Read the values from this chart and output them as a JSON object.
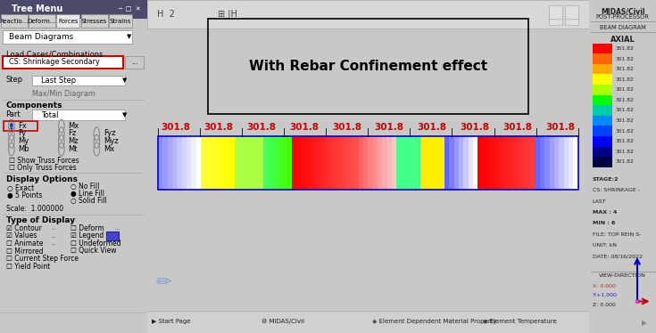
{
  "title": "With Rebar Confinement effect",
  "bg_color": "#c8c8c8",
  "main_bg": "#ffffff",
  "left_panel_bg": "#e0e0e0",
  "right_panel_bg": "#d0d0d0",
  "beam_label": "301.8",
  "legend_colors": [
    "#ff0000",
    "#ff6600",
    "#ffaa00",
    "#ffff00",
    "#aaff00",
    "#00ff00",
    "#00ccaa",
    "#0088ff",
    "#0044ff",
    "#0000ff",
    "#000088",
    "#000044"
  ],
  "legend_values": [
    "301.82",
    "301.82",
    "301.82",
    "301.82",
    "301.82",
    "301.82",
    "301.82",
    "301.82",
    "301.82",
    "301.82",
    "301.82",
    "301.82"
  ],
  "info_text": "STAGE:2\nCS: SHRINKAGE -\nLAST\nMAX : 4\nMIN : 6\nFILE: TOP REIN S-\nUNIT: kN\nDATE: 08/16/2022",
  "left_panel_title": "Tree Menu",
  "dropdown_beam": "Beam Diagrams",
  "load_combo_label": "Load Cases/Combinations",
  "load_combo_value": "CS: Shrinkage Secondary",
  "step_label": "Step",
  "step_value": "Last Step",
  "max_min": "Max/Min Diagram",
  "components_label": "Components",
  "part_label": "Part",
  "part_value": "Total",
  "display_options_label": "Display Options",
  "scale_label": "Scale:",
  "scale_value": "1.000000",
  "type_display_label": "Type of Display"
}
